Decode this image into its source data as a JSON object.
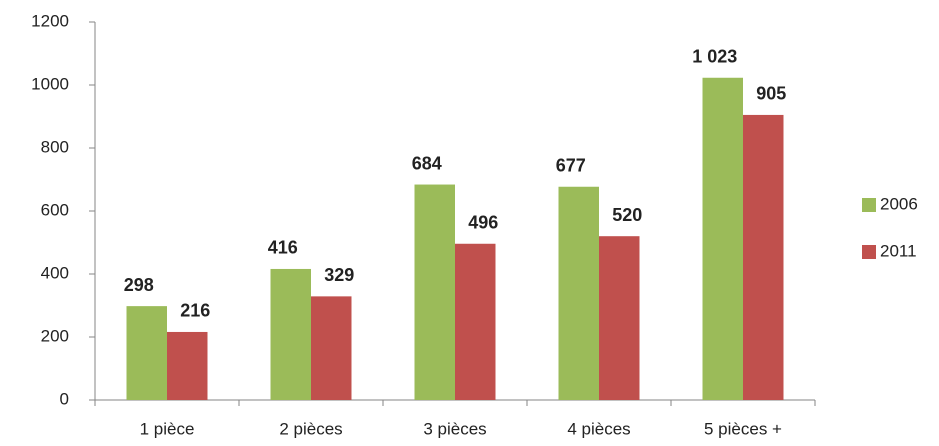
{
  "chart_data": {
    "type": "bar",
    "categories": [
      "1 pièce",
      "2 pièces",
      "3 pièces",
      "4 pièces",
      "5 pièces +"
    ],
    "series": [
      {
        "name": "2006",
        "color": "#9bbb59",
        "values": [
          298,
          416,
          684,
          677,
          1023
        ],
        "value_labels": [
          "298",
          "416",
          "684",
          "677",
          "1 023"
        ]
      },
      {
        "name": "2011",
        "color": "#c0504d",
        "values": [
          216,
          329,
          496,
          520,
          905
        ],
        "value_labels": [
          "216",
          "329",
          "496",
          "520",
          "905"
        ]
      }
    ],
    "ylim": [
      0,
      1200
    ],
    "yticks": [
      0,
      200,
      400,
      600,
      800,
      1000,
      1200
    ],
    "grid": false,
    "legend": "right"
  }
}
